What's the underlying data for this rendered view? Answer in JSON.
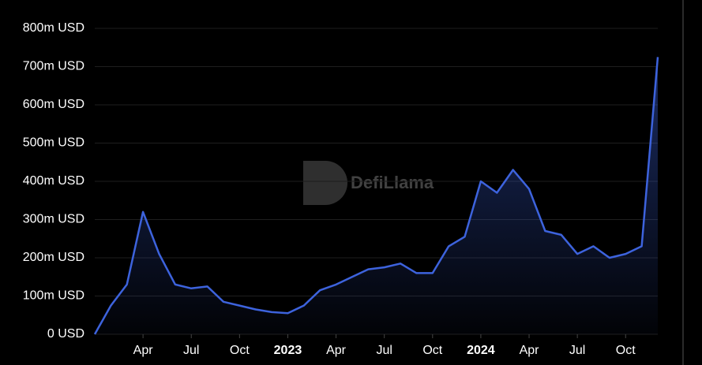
{
  "chart_data": {
    "type": "area",
    "watermark": "DefiLlama",
    "color": "#3d63dd",
    "grid": true,
    "x": [
      "2022-01",
      "2022-02",
      "2022-03",
      "2022-04",
      "2022-05",
      "2022-06",
      "2022-07",
      "2022-08",
      "2022-09",
      "2022-10",
      "2022-11",
      "2022-12",
      "2023-01",
      "2023-02",
      "2023-03",
      "2023-04",
      "2023-05",
      "2023-06",
      "2023-07",
      "2023-08",
      "2023-09",
      "2023-10",
      "2023-11",
      "2023-12",
      "2024-01",
      "2024-02",
      "2024-03",
      "2024-04",
      "2024-05",
      "2024-06",
      "2024-07",
      "2024-08",
      "2024-09",
      "2024-10",
      "2024-11",
      "2024-12"
    ],
    "values": [
      0,
      75,
      130,
      320,
      210,
      130,
      120,
      125,
      85,
      75,
      65,
      58,
      55,
      75,
      115,
      130,
      150,
      170,
      175,
      185,
      160,
      160,
      230,
      255,
      400,
      370,
      430,
      380,
      270,
      260,
      210,
      230,
      200,
      210,
      230,
      725
    ],
    "xlim": [
      "2022-01",
      "2024-12"
    ],
    "xticks": [
      {
        "value": "2022-04",
        "label": "Apr"
      },
      {
        "value": "2022-07",
        "label": "Jul"
      },
      {
        "value": "2022-10",
        "label": "Oct"
      },
      {
        "value": "2023-01",
        "label": "2023"
      },
      {
        "value": "2023-04",
        "label": "Apr"
      },
      {
        "value": "2023-07",
        "label": "Jul"
      },
      {
        "value": "2023-10",
        "label": "Oct"
      },
      {
        "value": "2024-01",
        "label": "2024"
      },
      {
        "value": "2024-04",
        "label": "Apr"
      },
      {
        "value": "2024-07",
        "label": "Jul"
      },
      {
        "value": "2024-10",
        "label": "Oct"
      }
    ],
    "ylim": [
      0,
      800
    ],
    "yticks": [
      {
        "value": 0,
        "label": "0 USD"
      },
      {
        "value": 100,
        "label": "100m USD"
      },
      {
        "value": 200,
        "label": "200m USD"
      },
      {
        "value": 300,
        "label": "300m USD"
      },
      {
        "value": 400,
        "label": "400m USD"
      },
      {
        "value": 500,
        "label": "500m USD"
      },
      {
        "value": 600,
        "label": "600m USD"
      },
      {
        "value": 700,
        "label": "700m USD"
      },
      {
        "value": 800,
        "label": "800m USD"
      }
    ]
  }
}
